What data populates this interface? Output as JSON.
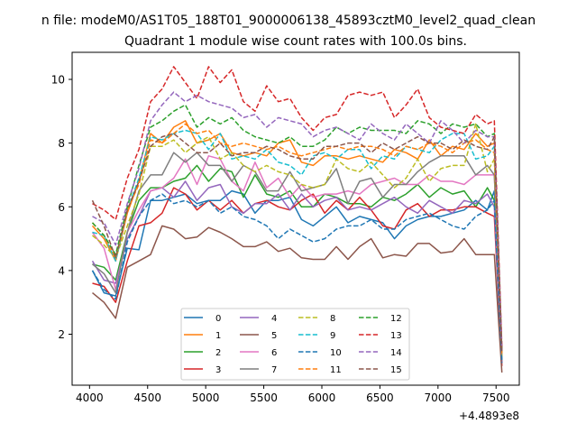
{
  "chart_data": {
    "type": "line",
    "suptitle": "n file: modeM0/AS1T05_188T01_9000006138_45893cztM0_level2_quad_clean",
    "title": "Quadrant 1 module wise count rates with 100.0s bins.",
    "xlabel": "",
    "ylabel": "",
    "x_offset_label": "+4.4893e8",
    "xlim": [
      3850,
      7700
    ],
    "ylim": [
      0.4,
      10.85
    ],
    "xticks": [
      4000,
      4500,
      5000,
      5500,
      6000,
      6500,
      7000,
      7500
    ],
    "yticks": [
      2,
      4,
      6,
      8,
      10
    ],
    "grid": false,
    "legend_position": "lower center",
    "x": [
      4025,
      4125,
      4225,
      4325,
      4425,
      4525,
      4625,
      4725,
      4825,
      4925,
      5025,
      5125,
      5225,
      5325,
      5425,
      5525,
      5625,
      5725,
      5825,
      5925,
      6025,
      6125,
      6225,
      6325,
      6425,
      6525,
      6625,
      6725,
      6825,
      6925,
      7025,
      7125,
      7225,
      7325,
      7425,
      7485,
      7550
    ],
    "series": [
      {
        "name": "0",
        "color": "#1f77b4",
        "dash": "solid",
        "values": [
          4.0,
          3.3,
          3.2,
          4.7,
          4.65,
          6.2,
          6.2,
          6.3,
          6.4,
          6.1,
          6.2,
          6.2,
          6.5,
          6.4,
          5.8,
          6.2,
          6.2,
          6.3,
          5.6,
          5.4,
          5.7,
          6.0,
          5.5,
          5.7,
          5.6,
          5.5,
          5.0,
          5.4,
          5.6,
          5.7,
          5.7,
          5.8,
          5.9,
          6.2,
          5.9,
          6.5,
          1.2
        ]
      },
      {
        "name": "1",
        "color": "#ff7f0e",
        "dash": "solid",
        "values": [
          5.4,
          5.0,
          4.3,
          5.8,
          6.8,
          8.3,
          8.0,
          8.5,
          8.7,
          8.0,
          8.1,
          8.3,
          7.7,
          7.6,
          7.7,
          7.6,
          8.0,
          8.1,
          7.4,
          7.3,
          7.6,
          7.6,
          7.5,
          7.6,
          7.5,
          7.4,
          7.8,
          7.7,
          7.5,
          8.1,
          7.6,
          7.9,
          7.8,
          8.3,
          7.9,
          8.0,
          1.4
        ]
      },
      {
        "name": "2",
        "color": "#2ca02c",
        "dash": "solid",
        "values": [
          4.2,
          4.1,
          3.7,
          5.2,
          6.2,
          6.6,
          6.6,
          6.8,
          6.9,
          7.3,
          6.8,
          7.2,
          7.1,
          6.3,
          7.0,
          6.4,
          6.3,
          6.5,
          6.0,
          6.0,
          6.4,
          6.3,
          6.1,
          6.1,
          6.0,
          6.3,
          6.2,
          6.4,
          6.7,
          6.3,
          6.6,
          6.4,
          6.5,
          6.0,
          6.6,
          6.2,
          1.1
        ]
      },
      {
        "name": "3",
        "color": "#d62728",
        "dash": "solid",
        "values": [
          3.6,
          3.5,
          3.0,
          4.3,
          5.4,
          5.5,
          5.8,
          6.6,
          6.4,
          5.9,
          6.2,
          5.9,
          6.2,
          5.8,
          6.1,
          6.2,
          6.0,
          5.9,
          6.2,
          6.4,
          5.8,
          6.2,
          5.9,
          6.3,
          5.9,
          5.4,
          5.3,
          5.9,
          6.1,
          5.7,
          5.9,
          5.9,
          6.0,
          6.0,
          5.8,
          5.7,
          1.0
        ]
      },
      {
        "name": "4",
        "color": "#9467bd",
        "dash": "solid",
        "values": [
          4.3,
          3.7,
          3.6,
          5.0,
          5.7,
          6.5,
          6.6,
          6.3,
          6.8,
          6.2,
          6.6,
          6.7,
          6.0,
          5.8,
          6.1,
          6.1,
          6.4,
          5.9,
          6.4,
          6.0,
          6.2,
          6.3,
          5.9,
          6.0,
          5.9,
          6.1,
          6.3,
          6.0,
          5.8,
          6.2,
          6.0,
          5.8,
          6.2,
          6.1,
          6.4,
          6.0,
          1.1
        ]
      },
      {
        "name": "5",
        "color": "#8c564b",
        "dash": "solid",
        "values": [
          3.3,
          3.0,
          2.5,
          4.1,
          4.3,
          4.5,
          5.4,
          5.3,
          5.0,
          5.05,
          5.35,
          5.2,
          5.0,
          4.75,
          4.75,
          4.9,
          4.6,
          4.7,
          4.4,
          4.35,
          4.35,
          4.75,
          4.35,
          4.75,
          5.0,
          4.4,
          4.5,
          4.45,
          4.85,
          4.85,
          4.55,
          4.6,
          5.0,
          4.5,
          4.5,
          4.5,
          0.8
        ]
      },
      {
        "name": "6",
        "color": "#e377c2",
        "dash": "solid",
        "values": [
          5.2,
          4.7,
          3.4,
          5.2,
          5.9,
          6.5,
          6.6,
          6.9,
          7.5,
          6.7,
          7.6,
          7.5,
          6.8,
          6.5,
          7.4,
          6.6,
          6.9,
          6.3,
          6.7,
          6.3,
          6.4,
          6.4,
          6.5,
          6.4,
          6.7,
          6.8,
          6.9,
          6.7,
          6.7,
          7.0,
          6.8,
          6.8,
          6.7,
          7.0,
          7.0,
          7.0,
          1.3
        ]
      },
      {
        "name": "7",
        "color": "#7f7f7f",
        "dash": "solid",
        "values": [
          4.2,
          3.9,
          3.3,
          5.2,
          6.5,
          7.0,
          7.0,
          7.7,
          7.4,
          7.7,
          7.3,
          7.3,
          6.8,
          7.3,
          7.1,
          6.5,
          6.5,
          7.1,
          6.5,
          6.6,
          6.7,
          7.2,
          6.1,
          6.8,
          6.9,
          6.3,
          6.7,
          6.7,
          7.1,
          7.4,
          7.6,
          7.6,
          7.6,
          7.0,
          7.3,
          7.0,
          1.3
        ]
      },
      {
        "name": "8",
        "color": "#bcbd22",
        "dash": "dash",
        "values": [
          5.1,
          4.8,
          4.4,
          5.4,
          6.4,
          7.9,
          7.9,
          8.1,
          7.7,
          8.0,
          8.2,
          7.5,
          7.7,
          7.3,
          7.1,
          7.3,
          7.1,
          7.0,
          6.7,
          6.6,
          6.7,
          7.5,
          7.2,
          7.1,
          7.4,
          7.0,
          6.6,
          6.9,
          7.5,
          6.8,
          7.2,
          7.3,
          7.3,
          8.6,
          7.1,
          7.5,
          1.3
        ]
      },
      {
        "name": "9",
        "color": "#17becf",
        "dash": "dash",
        "values": [
          5.2,
          5.1,
          4.3,
          5.9,
          6.9,
          8.2,
          8.1,
          8.3,
          8.4,
          8.3,
          7.8,
          8.3,
          7.5,
          7.6,
          7.5,
          7.8,
          7.4,
          7.3,
          7.0,
          7.6,
          7.7,
          7.5,
          7.8,
          7.8,
          7.2,
          7.6,
          7.5,
          7.9,
          7.8,
          7.7,
          8.1,
          8.3,
          8.3,
          7.5,
          7.6,
          7.9,
          1.4
        ]
      },
      {
        "name": "10",
        "color": "#1f77b4",
        "dash": "dash",
        "values": [
          4.0,
          3.4,
          3.1,
          4.9,
          5.7,
          6.2,
          6.4,
          6.1,
          6.2,
          6.0,
          6.2,
          5.8,
          6.0,
          5.7,
          5.6,
          5.4,
          5.0,
          5.3,
          5.1,
          4.9,
          5.0,
          5.3,
          5.4,
          5.4,
          5.6,
          5.3,
          5.3,
          5.6,
          5.7,
          5.8,
          5.6,
          5.4,
          5.3,
          5.7,
          5.9,
          6.2,
          1.1
        ]
      },
      {
        "name": "11",
        "color": "#ff7f0e",
        "dash": "dash",
        "values": [
          5.5,
          5.1,
          4.4,
          5.9,
          6.7,
          8.1,
          8.0,
          8.3,
          8.6,
          8.3,
          8.4,
          8.0,
          7.9,
          8.0,
          7.9,
          7.8,
          7.9,
          7.7,
          7.6,
          7.7,
          7.8,
          7.9,
          7.8,
          7.9,
          7.9,
          7.8,
          7.6,
          7.9,
          7.8,
          8.0,
          7.9,
          7.7,
          8.0,
          8.1,
          7.8,
          7.7,
          1.4
        ]
      },
      {
        "name": "12",
        "color": "#2ca02c",
        "dash": "dash",
        "values": [
          5.5,
          5.1,
          4.5,
          6.0,
          7.3,
          8.5,
          8.7,
          9.0,
          9.2,
          8.5,
          8.8,
          8.6,
          8.8,
          8.4,
          8.2,
          8.1,
          8.0,
          8.2,
          7.9,
          7.9,
          8.1,
          8.5,
          8.3,
          8.5,
          8.4,
          8.4,
          8.4,
          8.3,
          8.7,
          8.6,
          8.3,
          8.6,
          8.5,
          8.6,
          8.2,
          8.3,
          1.5
        ]
      },
      {
        "name": "13",
        "color": "#d62728",
        "dash": "dash",
        "values": [
          6.1,
          5.9,
          5.6,
          6.9,
          7.8,
          9.3,
          9.7,
          10.4,
          9.9,
          9.4,
          10.4,
          9.9,
          10.3,
          9.3,
          9.0,
          9.8,
          9.3,
          9.4,
          8.8,
          8.4,
          8.8,
          8.9,
          9.5,
          9.6,
          9.5,
          9.6,
          8.8,
          9.2,
          9.7,
          8.8,
          8.5,
          8.4,
          8.3,
          8.9,
          8.6,
          8.7,
          1.6
        ]
      },
      {
        "name": "14",
        "color": "#9467bd",
        "dash": "dash",
        "values": [
          5.7,
          5.5,
          4.8,
          6.1,
          7.2,
          8.7,
          9.2,
          9.6,
          9.3,
          9.5,
          9.3,
          9.2,
          9.1,
          8.8,
          8.9,
          8.5,
          8.8,
          8.7,
          8.6,
          8.2,
          8.4,
          8.5,
          8.3,
          8.1,
          8.6,
          8.3,
          8.1,
          8.6,
          8.3,
          8.0,
          8.7,
          8.4,
          8.0,
          8.4,
          8.2,
          8.2,
          1.5
        ]
      },
      {
        "name": "15",
        "color": "#8c564b",
        "dash": "dash",
        "values": [
          6.2,
          5.4,
          4.4,
          5.9,
          6.8,
          7.9,
          8.2,
          8.3,
          8.0,
          7.7,
          7.7,
          8.0,
          7.6,
          7.7,
          7.7,
          7.9,
          7.8,
          7.6,
          7.5,
          7.5,
          7.9,
          7.9,
          8.0,
          8.0,
          7.7,
          8.0,
          7.8,
          8.0,
          8.2,
          8.0,
          8.0,
          7.8,
          8.1,
          7.9,
          7.8,
          8.2,
          1.4
        ]
      }
    ]
  }
}
